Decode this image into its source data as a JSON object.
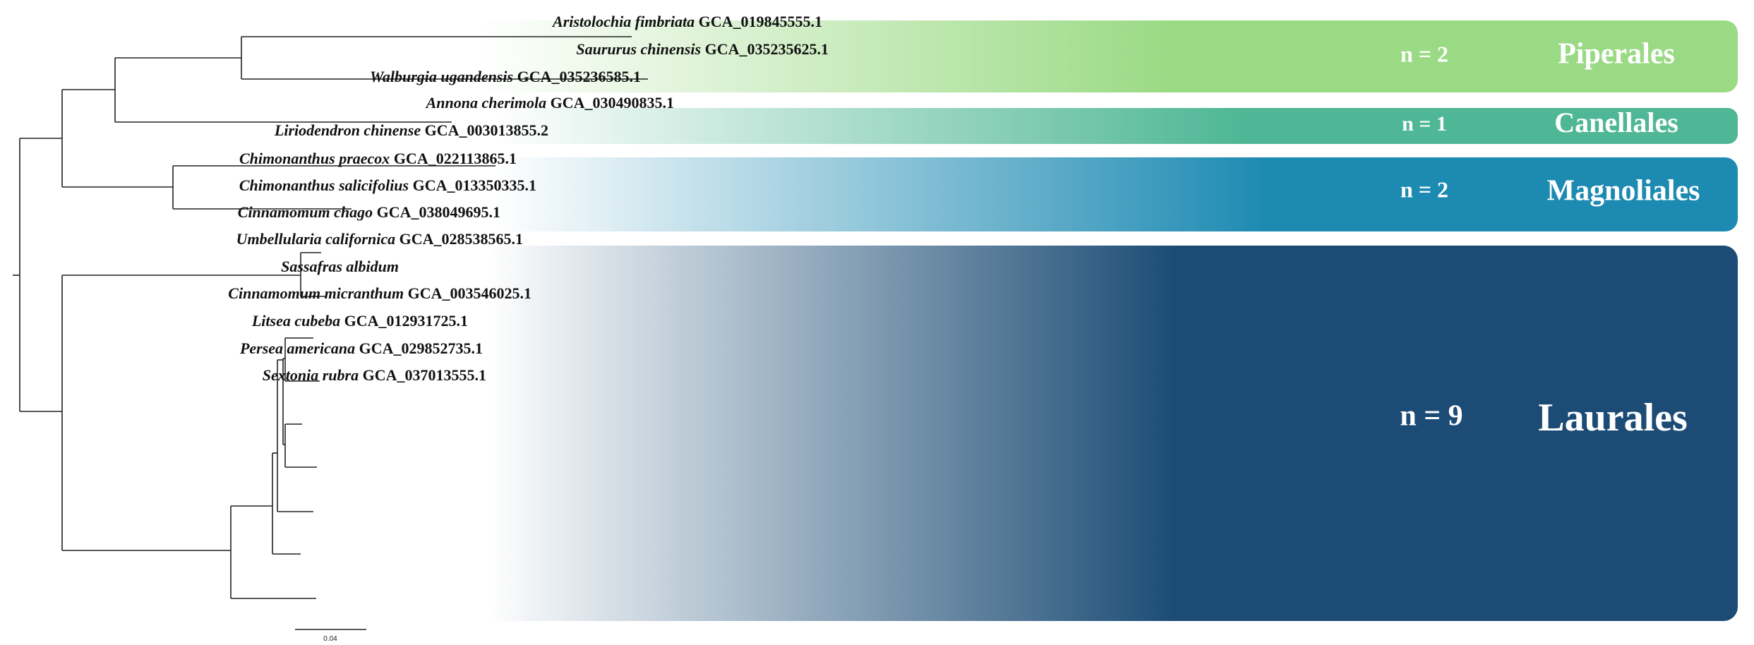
{
  "clades": [
    {
      "name": "Piperales",
      "count_label": "n = 2",
      "color": "#9ADA84"
    },
    {
      "name": "Canellales",
      "count_label": "n = 1",
      "color": "#4FB795"
    },
    {
      "name": "Magnoliales",
      "count_label": "n = 2",
      "color": "#1D8AB2"
    },
    {
      "name": "Laurales",
      "count_label": "n = 9",
      "color": "#1C4C75"
    }
  ],
  "taxa": [
    {
      "species": "Aristolochia fimbriata",
      "accession": "GCA_019845555.1",
      "clade": "Piperales"
    },
    {
      "species": "Saururus chinensis",
      "accession": "GCA_035235625.1",
      "clade": "Piperales"
    },
    {
      "species": "Walburgia ugandensis",
      "accession": "GCA_035236585.1",
      "clade": "Canellales"
    },
    {
      "species": "Annona cherimola",
      "accession": "GCA_030490835.1",
      "clade": "Magnoliales"
    },
    {
      "species": "Liriodendron chinense",
      "accession": "GCA_003013855.2",
      "clade": "Magnoliales"
    },
    {
      "species": "Chimonanthus praecox",
      "accession": "GCA_022113865.1",
      "clade": "Laurales"
    },
    {
      "species": "Chimonanthus salicifolius",
      "accession": "GCA_013350335.1",
      "clade": "Laurales"
    },
    {
      "species": "Cinnamomum chago",
      "accession": "GCA_038049695.1",
      "clade": "Laurales"
    },
    {
      "species": "Umbellularia californica",
      "accession": "GCA_028538565.1",
      "clade": "Laurales"
    },
    {
      "species": "Sassafras albidum",
      "accession": "",
      "clade": "Laurales"
    },
    {
      "species": "Cinnamomum micranthum",
      "accession": "GCA_003546025.1",
      "clade": "Laurales"
    },
    {
      "species": "Litsea cubeba",
      "accession": "GCA_012931725.1",
      "clade": "Laurales"
    },
    {
      "species": "Persea americana",
      "accession": "GCA_029852735.1",
      "clade": "Laurales"
    },
    {
      "species": "Sextonia rubra",
      "accession": "GCA_037013555.1",
      "clade": "Laurales"
    }
  ],
  "scale_bar": {
    "label": "0.04"
  }
}
